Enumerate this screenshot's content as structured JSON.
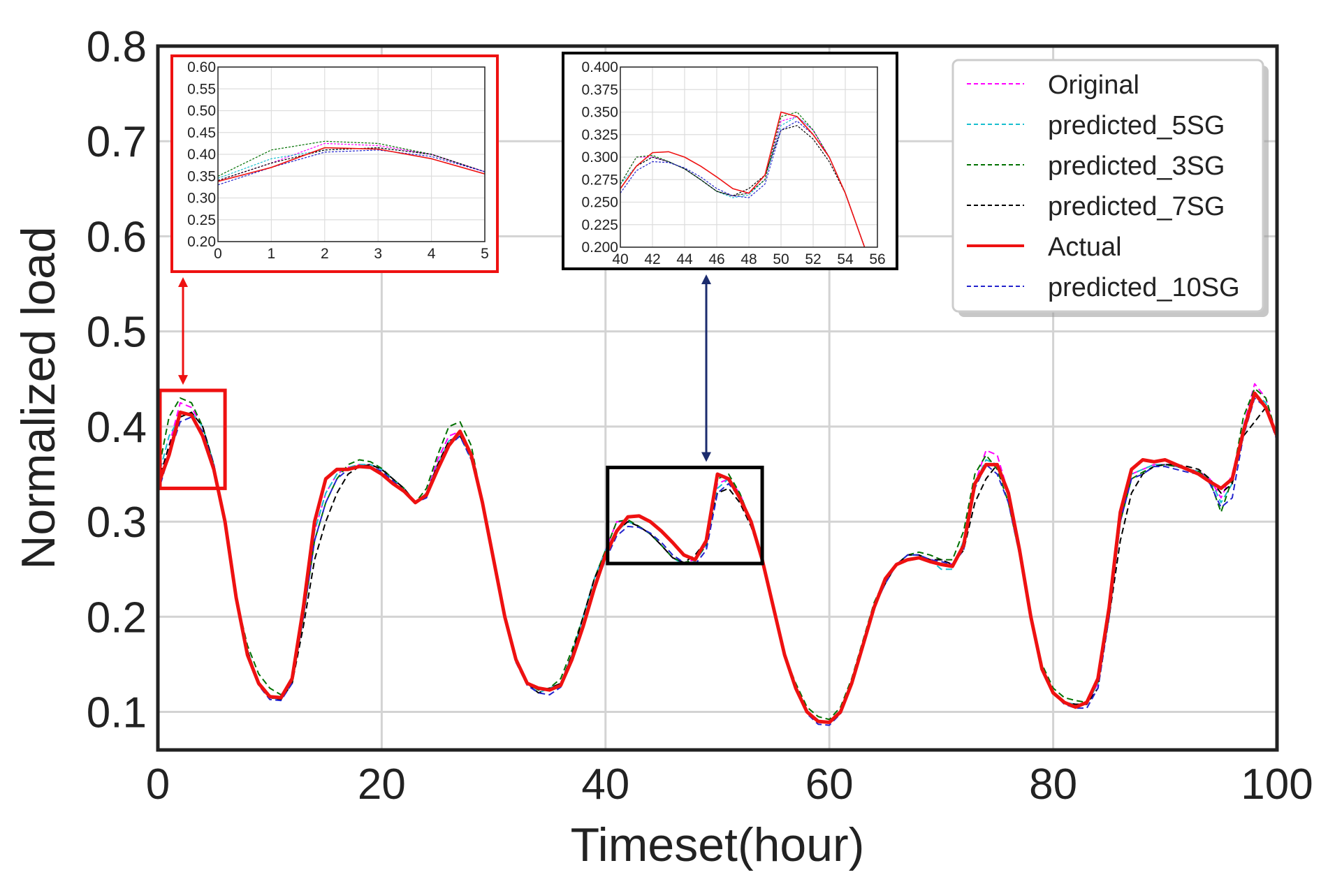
{
  "chart_data": {
    "type": "line",
    "title": "",
    "xlabel": "Timeset(hour)",
    "ylabel": "Normalized load",
    "xlim": [
      0,
      100
    ],
    "ylim": [
      0.06,
      0.8
    ],
    "xticks": [
      0,
      20,
      40,
      60,
      80,
      100
    ],
    "xtick_labels": [
      "0",
      "20",
      "40",
      "60",
      "80",
      "100"
    ],
    "yticks": [
      0.1,
      0.2,
      0.3,
      0.4,
      0.5,
      0.6,
      0.7,
      0.8
    ],
    "ytick_labels": [
      "0.1",
      "0.2",
      "0.3",
      "0.4",
      "0.5",
      "0.6",
      "0.7",
      "0.8"
    ],
    "grid": true,
    "legend_position": "top-right",
    "x": [
      0,
      1,
      2,
      3,
      4,
      5,
      6,
      7,
      8,
      9,
      10,
      11,
      12,
      13,
      14,
      15,
      16,
      17,
      18,
      19,
      20,
      21,
      22,
      23,
      24,
      25,
      26,
      27,
      28,
      29,
      30,
      31,
      32,
      33,
      34,
      35,
      36,
      37,
      38,
      39,
      40,
      41,
      42,
      43,
      44,
      45,
      46,
      47,
      48,
      49,
      50,
      51,
      52,
      53,
      54,
      55,
      56,
      57,
      58,
      59,
      60,
      61,
      62,
      63,
      64,
      65,
      66,
      67,
      68,
      69,
      70,
      71,
      72,
      73,
      74,
      75,
      76,
      77,
      78,
      79,
      80,
      81,
      82,
      83,
      84,
      85,
      86,
      87,
      88,
      89,
      90,
      91,
      92,
      93,
      94,
      95,
      96,
      97,
      98,
      99,
      100
    ],
    "series": [
      {
        "name": "Original",
        "color": "#ff00ff",
        "dashed": true,
        "width": 2,
        "values": [
          0.34,
          0.38,
          0.425,
          0.42,
          0.4,
          0.36,
          0.3,
          0.22,
          0.165,
          0.13,
          0.115,
          0.113,
          0.13,
          0.2,
          0.29,
          0.33,
          0.35,
          0.357,
          0.36,
          0.36,
          0.355,
          0.345,
          0.335,
          0.32,
          0.33,
          0.365,
          0.39,
          0.395,
          0.37,
          0.32,
          0.26,
          0.2,
          0.155,
          0.13,
          0.123,
          0.125,
          0.13,
          0.16,
          0.2,
          0.24,
          0.27,
          0.3,
          0.3,
          0.295,
          0.287,
          0.275,
          0.262,
          0.257,
          0.26,
          0.275,
          0.34,
          0.345,
          0.33,
          0.3,
          0.26,
          0.21,
          0.16,
          0.125,
          0.1,
          0.09,
          0.089,
          0.1,
          0.13,
          0.17,
          0.21,
          0.235,
          0.255,
          0.265,
          0.265,
          0.26,
          0.26,
          0.255,
          0.275,
          0.34,
          0.375,
          0.37,
          0.33,
          0.27,
          0.2,
          0.145,
          0.12,
          0.11,
          0.108,
          0.108,
          0.13,
          0.2,
          0.3,
          0.35,
          0.355,
          0.36,
          0.36,
          0.358,
          0.355,
          0.353,
          0.345,
          0.325,
          0.35,
          0.4,
          0.445,
          0.43,
          0.39
        ]
      },
      {
        "name": "predicted_5SG",
        "color": "#17becf",
        "dashed": true,
        "width": 2,
        "values": [
          0.345,
          0.39,
          0.41,
          0.415,
          0.4,
          0.36,
          0.3,
          0.22,
          0.165,
          0.13,
          0.115,
          0.113,
          0.13,
          0.2,
          0.29,
          0.33,
          0.35,
          0.357,
          0.36,
          0.36,
          0.355,
          0.345,
          0.335,
          0.32,
          0.33,
          0.36,
          0.385,
          0.39,
          0.365,
          0.32,
          0.26,
          0.2,
          0.155,
          0.13,
          0.12,
          0.125,
          0.13,
          0.16,
          0.2,
          0.24,
          0.27,
          0.29,
          0.3,
          0.295,
          0.287,
          0.275,
          0.262,
          0.255,
          0.258,
          0.275,
          0.335,
          0.345,
          0.33,
          0.3,
          0.26,
          0.21,
          0.16,
          0.125,
          0.1,
          0.09,
          0.089,
          0.1,
          0.13,
          0.17,
          0.21,
          0.235,
          0.255,
          0.265,
          0.265,
          0.26,
          0.25,
          0.25,
          0.28,
          0.34,
          0.365,
          0.36,
          0.33,
          0.27,
          0.2,
          0.145,
          0.12,
          0.11,
          0.108,
          0.108,
          0.13,
          0.2,
          0.3,
          0.35,
          0.355,
          0.36,
          0.36,
          0.358,
          0.355,
          0.353,
          0.345,
          0.32,
          0.34,
          0.4,
          0.435,
          0.425,
          0.39
        ]
      },
      {
        "name": "predicted_3SG",
        "color": "#007000",
        "dashed": true,
        "width": 2,
        "values": [
          0.35,
          0.41,
          0.43,
          0.425,
          0.4,
          0.36,
          0.3,
          0.22,
          0.17,
          0.14,
          0.125,
          0.118,
          0.13,
          0.2,
          0.28,
          0.32,
          0.345,
          0.36,
          0.365,
          0.363,
          0.356,
          0.345,
          0.335,
          0.32,
          0.335,
          0.37,
          0.4,
          0.405,
          0.38,
          0.32,
          0.26,
          0.2,
          0.155,
          0.13,
          0.123,
          0.125,
          0.135,
          0.165,
          0.2,
          0.24,
          0.27,
          0.3,
          0.302,
          0.295,
          0.287,
          0.275,
          0.262,
          0.257,
          0.26,
          0.275,
          0.345,
          0.35,
          0.33,
          0.3,
          0.26,
          0.21,
          0.16,
          0.13,
          0.105,
          0.095,
          0.092,
          0.105,
          0.135,
          0.175,
          0.215,
          0.24,
          0.255,
          0.265,
          0.268,
          0.265,
          0.26,
          0.26,
          0.29,
          0.35,
          0.37,
          0.355,
          0.32,
          0.265,
          0.2,
          0.15,
          0.125,
          0.115,
          0.112,
          0.11,
          0.135,
          0.2,
          0.3,
          0.345,
          0.352,
          0.358,
          0.36,
          0.358,
          0.355,
          0.353,
          0.343,
          0.31,
          0.345,
          0.41,
          0.44,
          0.43,
          0.39
        ]
      },
      {
        "name": "predicted_7SG",
        "color": "#000000",
        "dashed": true,
        "width": 2,
        "values": [
          0.34,
          0.38,
          0.41,
          0.415,
          0.4,
          0.36,
          0.3,
          0.22,
          0.165,
          0.13,
          0.115,
          0.113,
          0.13,
          0.19,
          0.26,
          0.3,
          0.33,
          0.35,
          0.358,
          0.36,
          0.355,
          0.345,
          0.335,
          0.32,
          0.33,
          0.36,
          0.385,
          0.39,
          0.37,
          0.32,
          0.26,
          0.2,
          0.155,
          0.13,
          0.12,
          0.125,
          0.13,
          0.16,
          0.2,
          0.24,
          0.265,
          0.29,
          0.3,
          0.295,
          0.287,
          0.275,
          0.262,
          0.257,
          0.265,
          0.28,
          0.33,
          0.335,
          0.32,
          0.295,
          0.26,
          0.21,
          0.16,
          0.125,
          0.1,
          0.09,
          0.089,
          0.1,
          0.13,
          0.17,
          0.21,
          0.235,
          0.255,
          0.265,
          0.265,
          0.26,
          0.26,
          0.255,
          0.27,
          0.32,
          0.345,
          0.36,
          0.33,
          0.27,
          0.2,
          0.145,
          0.12,
          0.11,
          0.108,
          0.108,
          0.125,
          0.2,
          0.28,
          0.33,
          0.35,
          0.358,
          0.36,
          0.36,
          0.358,
          0.355,
          0.345,
          0.33,
          0.34,
          0.39,
          0.405,
          0.42,
          0.39
        ]
      },
      {
        "name": "Actual",
        "color": "#ee1111",
        "dashed": false,
        "width": 5,
        "values": [
          0.338,
          0.37,
          0.415,
          0.412,
          0.39,
          0.355,
          0.3,
          0.22,
          0.16,
          0.13,
          0.116,
          0.115,
          0.135,
          0.21,
          0.3,
          0.345,
          0.355,
          0.355,
          0.358,
          0.357,
          0.35,
          0.34,
          0.332,
          0.32,
          0.328,
          0.355,
          0.38,
          0.395,
          0.37,
          0.32,
          0.26,
          0.2,
          0.155,
          0.13,
          0.125,
          0.123,
          0.128,
          0.155,
          0.19,
          0.23,
          0.265,
          0.29,
          0.305,
          0.306,
          0.3,
          0.29,
          0.278,
          0.265,
          0.26,
          0.28,
          0.35,
          0.345,
          0.325,
          0.3,
          0.26,
          0.21,
          0.16,
          0.125,
          0.1,
          0.09,
          0.089,
          0.1,
          0.13,
          0.17,
          0.21,
          0.24,
          0.255,
          0.26,
          0.262,
          0.258,
          0.255,
          0.253,
          0.275,
          0.34,
          0.36,
          0.36,
          0.33,
          0.27,
          0.2,
          0.145,
          0.12,
          0.11,
          0.105,
          0.11,
          0.135,
          0.21,
          0.31,
          0.355,
          0.365,
          0.363,
          0.365,
          0.36,
          0.355,
          0.35,
          0.342,
          0.335,
          0.345,
          0.395,
          0.435,
          0.42,
          0.39
        ]
      },
      {
        "name": "predicted_10SG",
        "color": "#2222cc",
        "dashed": true,
        "width": 2,
        "values": [
          0.33,
          0.37,
          0.405,
          0.41,
          0.395,
          0.36,
          0.3,
          0.22,
          0.163,
          0.128,
          0.113,
          0.112,
          0.13,
          0.2,
          0.28,
          0.32,
          0.345,
          0.355,
          0.358,
          0.358,
          0.353,
          0.343,
          0.333,
          0.32,
          0.325,
          0.355,
          0.38,
          0.39,
          0.365,
          0.32,
          0.26,
          0.2,
          0.152,
          0.128,
          0.12,
          0.118,
          0.126,
          0.155,
          0.19,
          0.23,
          0.26,
          0.285,
          0.295,
          0.294,
          0.288,
          0.278,
          0.265,
          0.257,
          0.255,
          0.27,
          0.33,
          0.34,
          0.325,
          0.3,
          0.26,
          0.21,
          0.16,
          0.123,
          0.098,
          0.087,
          0.086,
          0.098,
          0.128,
          0.168,
          0.21,
          0.235,
          0.255,
          0.265,
          0.265,
          0.26,
          0.258,
          0.255,
          0.27,
          0.335,
          0.36,
          0.35,
          0.32,
          0.265,
          0.2,
          0.145,
          0.12,
          0.108,
          0.104,
          0.104,
          0.125,
          0.2,
          0.3,
          0.345,
          0.35,
          0.358,
          0.358,
          0.355,
          0.352,
          0.35,
          0.34,
          0.315,
          0.325,
          0.39,
          0.43,
          0.42,
          0.385
        ]
      }
    ],
    "insets": [
      {
        "name": "inset-zoom-0-5",
        "frame_color": "#ee1111",
        "xlim": [
          0,
          5
        ],
        "ylim": [
          0.2,
          0.6
        ],
        "xticks": [
          0,
          1,
          2,
          3,
          4,
          5
        ],
        "xtick_labels": [
          "0",
          "1",
          "2",
          "3",
          "4",
          "5"
        ],
        "yticks": [
          0.2,
          0.25,
          0.3,
          0.35,
          0.4,
          0.45,
          0.5,
          0.55,
          0.6
        ],
        "ytick_labels": [
          "0.20",
          "0.25",
          "0.30",
          "0.35",
          "0.40",
          "0.45",
          "0.50",
          "0.55",
          "0.60"
        ],
        "zoom_region": {
          "x": [
            0,
            6
          ],
          "y": [
            0.335,
            0.438
          ]
        }
      },
      {
        "name": "inset-zoom-40-56",
        "frame_color": "#000000",
        "xlim": [
          40,
          56
        ],
        "ylim": [
          0.2,
          0.4
        ],
        "xticks": [
          40,
          42,
          44,
          46,
          48,
          50,
          52,
          54,
          56
        ],
        "xtick_labels": [
          "40",
          "42",
          "44",
          "46",
          "48",
          "50",
          "52",
          "54",
          "56"
        ],
        "yticks": [
          0.2,
          0.225,
          0.25,
          0.275,
          0.3,
          0.325,
          0.35,
          0.375,
          0.4
        ],
        "ytick_labels": [
          "0.200",
          "0.225",
          "0.250",
          "0.275",
          "0.300",
          "0.325",
          "0.350",
          "0.375",
          "0.400"
        ],
        "zoom_region": {
          "x": [
            40,
            54
          ],
          "y": [
            0.256,
            0.357
          ]
        }
      }
    ]
  }
}
